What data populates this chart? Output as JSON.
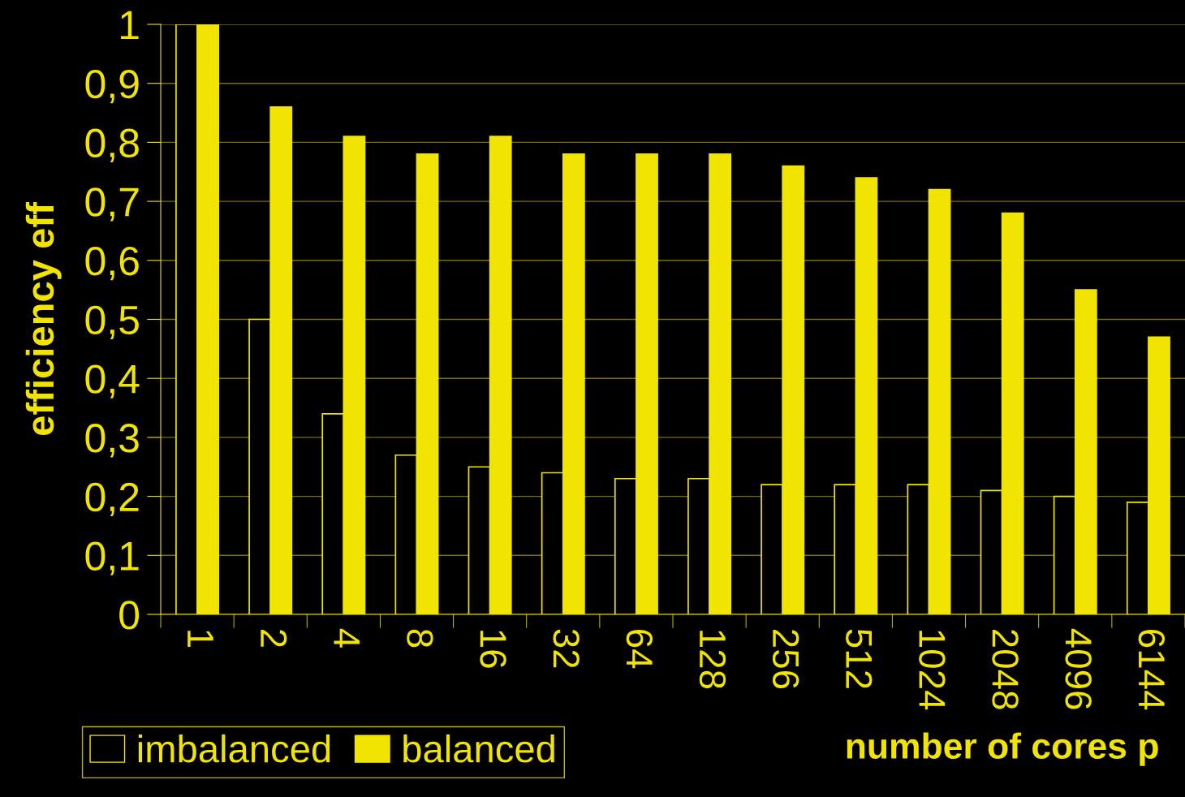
{
  "chart_data": {
    "type": "bar",
    "xlabel": "number of cores p",
    "ylabel": "efficiency eff",
    "categories": [
      "1",
      "2",
      "4",
      "8",
      "16",
      "32",
      "64",
      "128",
      "256",
      "512",
      "1024",
      "2048",
      "4096",
      "6144"
    ],
    "series": [
      {
        "name": "imbalanced",
        "color": "#000000",
        "values": [
          1.0,
          0.5,
          0.34,
          0.27,
          0.25,
          0.24,
          0.23,
          0.23,
          0.22,
          0.22,
          0.22,
          0.21,
          0.2,
          0.19
        ]
      },
      {
        "name": "balanced",
        "color": "#f0e400",
        "values": [
          1.0,
          0.86,
          0.81,
          0.78,
          0.81,
          0.78,
          0.78,
          0.78,
          0.76,
          0.74,
          0.72,
          0.68,
          0.55,
          0.47
        ]
      }
    ],
    "ylim": [
      0,
      1
    ],
    "yticks": [
      0,
      {
        "value": 0.1,
        "label": "0,1"
      },
      {
        "value": 0.2,
        "label": "0,2"
      },
      {
        "value": 0.3,
        "label": "0,3"
      },
      {
        "value": 0.4,
        "label": "0,4"
      },
      {
        "value": 0.5,
        "label": "0,5"
      },
      {
        "value": 0.6,
        "label": "0,6"
      },
      {
        "value": 0.7,
        "label": "0,7"
      },
      {
        "value": 0.8,
        "label": "0,8"
      },
      {
        "value": 0.9,
        "label": "0,9"
      },
      1
    ],
    "grid": "y",
    "legend": "bottom left"
  }
}
